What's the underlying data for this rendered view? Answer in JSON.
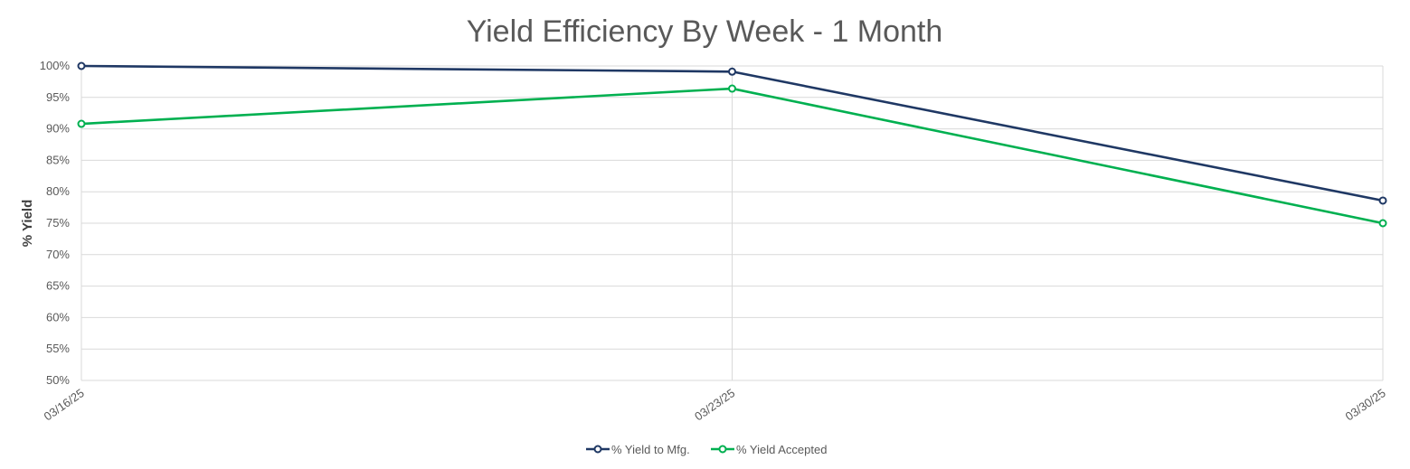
{
  "chart_data": {
    "type": "line",
    "title": "Yield Efficiency By Week - 1 Month",
    "xlabel": "",
    "ylabel": "% Yield",
    "categories": [
      "03/16/25",
      "03/23/25",
      "03/30/25"
    ],
    "ylim": [
      50,
      100
    ],
    "yticks": [
      "50%",
      "55%",
      "60%",
      "65%",
      "70%",
      "75%",
      "80%",
      "85%",
      "90%",
      "95%",
      "100%"
    ],
    "grid": true,
    "legend_position": "bottom",
    "series": [
      {
        "name": "% Yield to Mfg.",
        "color": "#1f3864",
        "values": [
          100.0,
          99.1,
          78.6
        ]
      },
      {
        "name": "% Yield Accepted",
        "color": "#00b050",
        "values": [
          90.8,
          96.4,
          75.0
        ]
      }
    ]
  }
}
